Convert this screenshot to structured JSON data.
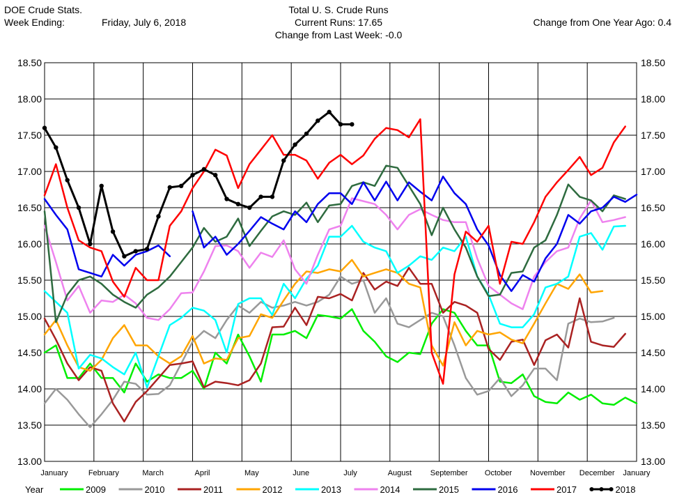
{
  "header": {
    "source": "DOE Crude Stats.",
    "week_label": "Week Ending:",
    "week_date": "Friday, July 6, 2018",
    "title": "Total U. S. Crude Runs",
    "current_runs": "Current Runs: 17.65",
    "change_week": "Change from Last Week:  -0.0",
    "change_year": "Change from One Year Ago:  0.4"
  },
  "chart_data": {
    "type": "line",
    "title": "Total U. S. Crude Runs",
    "ylim": [
      13.0,
      18.5
    ],
    "yticks": [
      "13.00",
      "13.50",
      "14.00",
      "14.50",
      "15.00",
      "15.50",
      "16.00",
      "16.50",
      "17.00",
      "17.50",
      "18.00",
      "18.50"
    ],
    "months": [
      "January",
      "February",
      "March",
      "April",
      "May",
      "June",
      "July",
      "August",
      "September",
      "October",
      "November",
      "December",
      "January"
    ],
    "grid": true,
    "legend_position": "bottom",
    "legend_label": "Year",
    "x_unit": "week",
    "series": [
      {
        "name": "2009",
        "color": "#00ee00",
        "marker": false,
        "values": [
          14.5,
          14.6,
          14.15,
          14.15,
          14.35,
          14.15,
          14.15,
          13.95,
          14.35,
          14.1,
          14.2,
          14.15,
          14.15,
          14.25,
          14.0,
          14.5,
          14.35,
          14.75,
          14.45,
          14.1,
          14.75,
          14.75,
          14.8,
          14.7,
          15.02,
          15.0,
          14.97,
          15.1,
          14.8,
          14.65,
          14.45,
          14.37,
          14.5,
          14.48,
          14.9,
          15.1,
          15.05,
          14.8,
          14.6,
          14.6,
          14.1,
          14.08,
          14.2,
          13.9,
          13.82,
          13.8,
          13.95,
          13.85,
          13.92,
          13.8,
          13.78,
          13.88,
          13.8
        ]
      },
      {
        "name": "2010",
        "color": "#999999",
        "marker": false,
        "values": [
          13.8,
          14.0,
          13.85,
          13.65,
          13.47,
          13.65,
          13.85,
          14.1,
          14.07,
          13.92,
          13.93,
          14.05,
          14.35,
          14.65,
          14.8,
          14.7,
          14.95,
          15.15,
          15.05,
          15.2,
          15.12,
          15.15,
          15.2,
          15.15,
          15.2,
          15.3,
          15.55,
          15.45,
          15.5,
          15.05,
          15.25,
          14.9,
          14.85,
          14.95,
          15.05,
          15.0,
          14.6,
          14.15,
          13.92,
          13.97,
          14.15,
          13.9,
          14.05,
          14.28,
          14.28,
          14.12,
          14.9,
          14.97,
          14.92,
          14.93,
          14.98
        ]
      },
      {
        "name": "2011",
        "color": "#aa2222",
        "marker": false,
        "values": [
          14.97,
          14.68,
          14.35,
          14.12,
          14.3,
          14.25,
          13.8,
          13.55,
          13.82,
          13.97,
          14.15,
          14.33,
          14.35,
          14.38,
          14.02,
          14.1,
          14.08,
          14.05,
          14.12,
          14.35,
          14.85,
          14.86,
          15.12,
          14.88,
          15.27,
          15.25,
          15.31,
          15.22,
          15.6,
          15.37,
          15.48,
          15.42,
          15.67,
          15.45,
          15.45,
          15.05,
          15.2,
          15.15,
          15.05,
          14.55,
          14.4,
          14.65,
          14.68,
          14.33,
          14.67,
          14.75,
          14.57,
          15.25,
          14.65,
          14.6,
          14.58,
          14.76
        ]
      },
      {
        "name": "2012",
        "color": "#ffa500",
        "marker": false,
        "values": [
          14.75,
          14.95,
          14.6,
          14.3,
          14.25,
          14.4,
          14.7,
          14.88,
          14.6,
          14.6,
          14.45,
          14.35,
          14.45,
          14.73,
          14.35,
          14.42,
          14.4,
          14.7,
          14.73,
          15.03,
          14.98,
          15.22,
          15.45,
          15.62,
          15.6,
          15.65,
          15.62,
          15.78,
          15.55,
          15.6,
          15.65,
          15.6,
          15.45,
          15.4,
          14.6,
          14.32,
          14.92,
          14.6,
          14.8,
          14.75,
          14.78,
          14.68,
          14.63,
          14.9,
          15.18,
          15.45,
          15.38,
          15.58,
          15.33,
          15.35
        ]
      },
      {
        "name": "2013",
        "color": "#00ffff",
        "marker": false,
        "values": [
          15.35,
          15.2,
          15.05,
          14.28,
          14.47,
          14.42,
          14.3,
          14.2,
          14.5,
          14.02,
          14.45,
          14.88,
          14.98,
          15.12,
          15.08,
          14.95,
          14.5,
          15.17,
          15.25,
          15.25,
          15.02,
          15.45,
          15.25,
          15.52,
          15.7,
          16.1,
          16.1,
          16.25,
          16.03,
          15.95,
          15.9,
          15.6,
          15.7,
          15.83,
          15.78,
          15.95,
          15.9,
          16.1,
          15.55,
          15.3,
          14.9,
          14.85,
          14.85,
          15.03,
          15.4,
          15.45,
          15.55,
          16.1,
          16.15,
          15.92,
          16.24,
          16.25
        ]
      },
      {
        "name": "2014",
        "color": "#ee82ee",
        "marker": false,
        "values": [
          16.25,
          15.75,
          15.22,
          15.42,
          15.05,
          15.22,
          15.2,
          15.3,
          15.18,
          14.98,
          14.95,
          15.1,
          15.32,
          15.33,
          15.62,
          15.97,
          15.98,
          15.9,
          15.67,
          15.88,
          15.82,
          16.05,
          15.65,
          15.45,
          15.85,
          16.2,
          16.25,
          16.63,
          16.59,
          16.55,
          16.4,
          16.2,
          16.4,
          16.48,
          16.4,
          16.33,
          16.3,
          16.3,
          15.8,
          15.42,
          15.3,
          15.18,
          15.1,
          15.55,
          15.75,
          15.9,
          15.95,
          16.35,
          16.6,
          16.3,
          16.33,
          16.37
        ]
      },
      {
        "name": "2015",
        "color": "#2e6b3f",
        "marker": false,
        "values": [
          16.45,
          14.92,
          15.3,
          15.5,
          15.55,
          15.45,
          15.3,
          15.2,
          15.12,
          15.3,
          15.4,
          15.55,
          15.75,
          15.95,
          16.22,
          16.03,
          16.1,
          16.35,
          15.97,
          16.18,
          16.38,
          16.45,
          16.4,
          16.57,
          16.3,
          16.53,
          16.55,
          16.8,
          16.85,
          16.8,
          17.08,
          17.05,
          16.8,
          16.55,
          16.12,
          16.5,
          16.2,
          15.95,
          15.55,
          15.28,
          15.3,
          15.6,
          15.62,
          15.95,
          16.05,
          16.4,
          16.82,
          16.65,
          16.6,
          16.45,
          16.67,
          16.62
        ]
      },
      {
        "name": "2016",
        "color": "#0000ee",
        "marker": false,
        "values": [
          16.62,
          16.4,
          16.2,
          15.65,
          15.6,
          15.55,
          15.85,
          15.7,
          15.85,
          15.9,
          15.98,
          15.83,
          null,
          16.45,
          15.95,
          16.1,
          15.85,
          16.0,
          16.18,
          16.37,
          16.28,
          16.2,
          16.45,
          16.3,
          16.55,
          16.7,
          16.7,
          16.55,
          16.85,
          16.6,
          16.86,
          16.6,
          16.85,
          16.72,
          16.6,
          16.93,
          16.7,
          16.55,
          16.2,
          15.98,
          15.57,
          15.35,
          15.57,
          15.48,
          15.8,
          16.0,
          16.4,
          16.28,
          16.45,
          16.5,
          16.65,
          16.58,
          16.68
        ]
      },
      {
        "name": "2017",
        "color": "#ff0000",
        "marker": false,
        "values": [
          16.67,
          17.1,
          16.5,
          16.05,
          15.95,
          15.9,
          15.48,
          15.27,
          15.67,
          15.5,
          15.5,
          16.25,
          16.45,
          16.77,
          17.0,
          17.3,
          17.22,
          16.77,
          17.1,
          17.3,
          17.5,
          17.23,
          17.23,
          17.15,
          16.9,
          17.12,
          17.23,
          17.1,
          17.22,
          17.45,
          17.6,
          17.57,
          17.47,
          17.72,
          14.5,
          14.07,
          15.58,
          16.17,
          16.03,
          16.25,
          15.45,
          16.03,
          16.0,
          16.3,
          16.65,
          16.85,
          17.02,
          17.2,
          16.95,
          17.05,
          17.4,
          17.62
        ]
      },
      {
        "name": "2018",
        "color": "#000000",
        "marker": true,
        "values": [
          17.6,
          17.33,
          16.88,
          16.5,
          16.0,
          16.8,
          16.17,
          15.83,
          15.9,
          15.93,
          16.38,
          16.78,
          16.8,
          16.95,
          17.03,
          16.95,
          16.62,
          16.55,
          16.5,
          16.65,
          16.65,
          17.15,
          17.37,
          17.52,
          17.7,
          17.82,
          17.65,
          17.65
        ]
      }
    ]
  }
}
